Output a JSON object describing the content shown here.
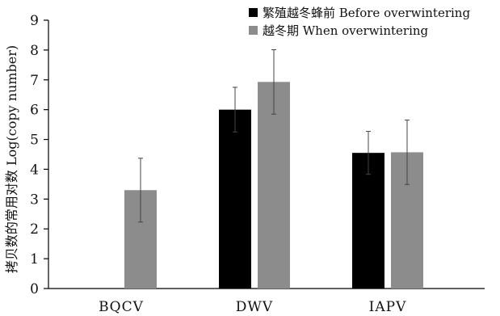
{
  "chart_data": {
    "type": "bar",
    "title": "",
    "xlabel": "",
    "ylabel": "拷贝数的常用对数 Log(copy number)",
    "ylim": [
      0,
      9
    ],
    "yticks": [
      0,
      1,
      2,
      3,
      4,
      5,
      6,
      7,
      8,
      9
    ],
    "grid": false,
    "legend_position": "top-right",
    "categories": [
      "BQCV",
      "DWV",
      "IAPV"
    ],
    "series": [
      {
        "name": "繁殖越冬蜂前 Before overwintering",
        "color": "#000000",
        "values": [
          null,
          6.0,
          4.55
        ],
        "errors": [
          null,
          0.75,
          0.72
        ]
      },
      {
        "name": "越冬期 When overwintering",
        "color": "#8c8c8c",
        "values": [
          3.3,
          6.93,
          4.57
        ],
        "errors": [
          1.07,
          1.08,
          1.08
        ]
      }
    ]
  }
}
